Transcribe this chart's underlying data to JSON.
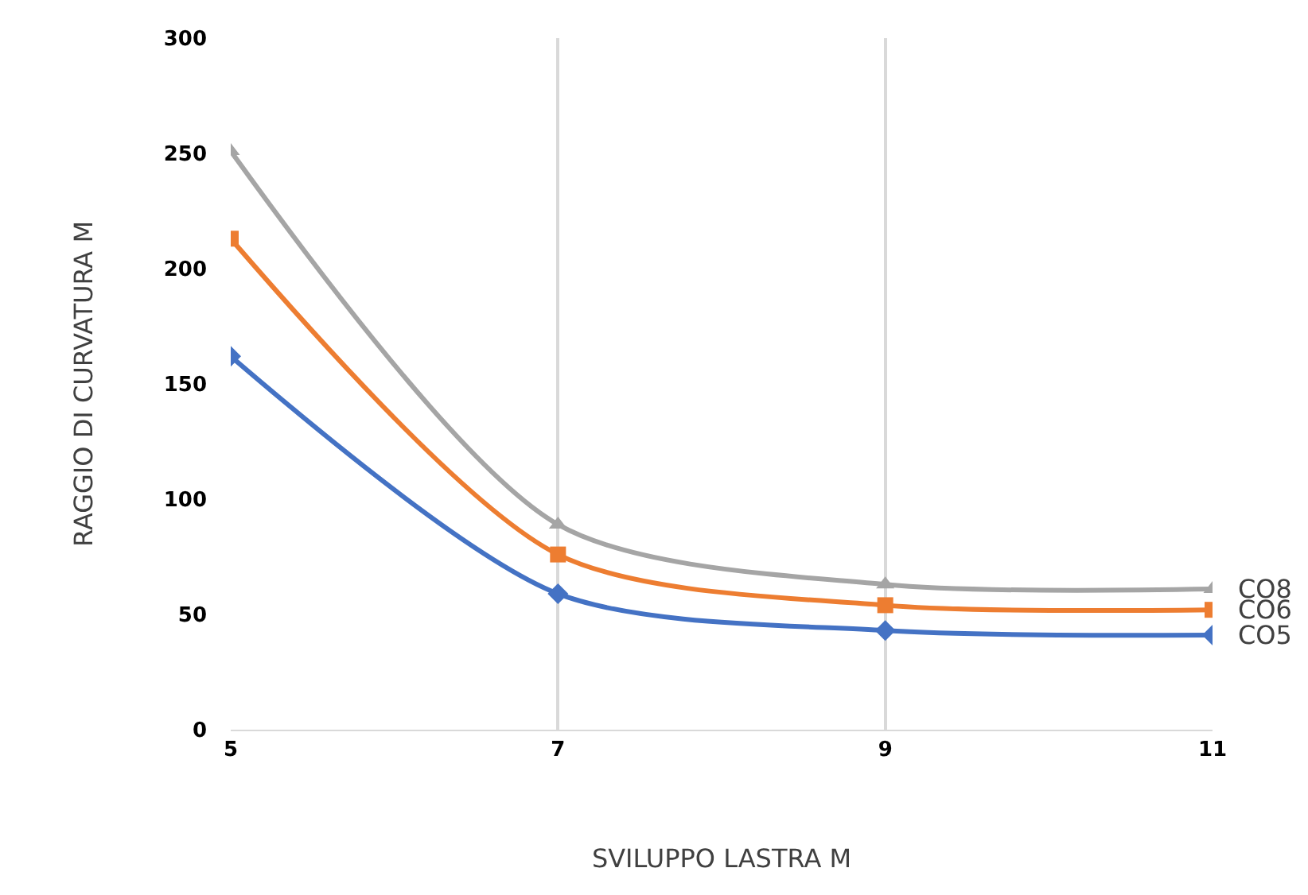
{
  "chart_data": {
    "type": "line",
    "xlabel": "SVILUPPO LASTRA M",
    "ylabel": "RAGGIO DI CURVATURA M",
    "x": [
      5,
      7,
      9,
      11
    ],
    "xlim": [
      5,
      11
    ],
    "xticks": [
      5,
      7,
      9,
      11
    ],
    "ylim": [
      0,
      300
    ],
    "yticks": [
      0,
      50,
      100,
      150,
      200,
      250,
      300
    ],
    "grid": "x",
    "legend": false,
    "series": [
      {
        "name": "CO5",
        "color": "#4472c4",
        "marker": "diamond",
        "values": [
          162,
          59,
          43,
          41
        ]
      },
      {
        "name": "CO6",
        "color": "#ed7d31",
        "marker": "square",
        "values": [
          213,
          76,
          54,
          52
        ]
      },
      {
        "name": "CO8",
        "color": "#a5a5a5",
        "marker": "triangle",
        "values": [
          251,
          89,
          63,
          61
        ]
      }
    ]
  }
}
